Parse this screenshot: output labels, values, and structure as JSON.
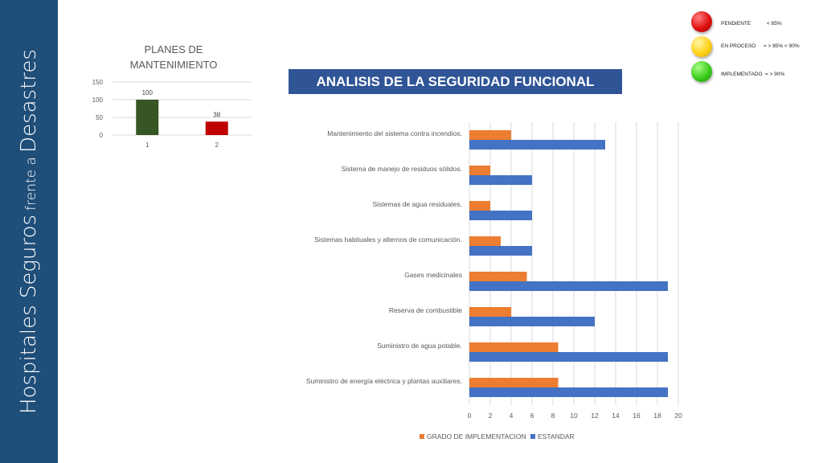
{
  "sidebar": {
    "title_part1": "Hospitales Seguros",
    "title_part2": "frente a",
    "title_part3": "Desastres",
    "color": "#1f4e79"
  },
  "banner": {
    "title": "ANALISIS DE LA SEGURIDAD FUNCIONAL",
    "color": "#2f5597"
  },
  "status_legend": {
    "items": [
      {
        "label": "PENDIENTE",
        "threshold": "< 85%",
        "light": "red-light-icon"
      },
      {
        "label": "EN PROCESO",
        "threshold": "= > 85%  < 90%",
        "light": "yellow-light-icon"
      },
      {
        "label": "IMPLEMENTADO",
        "threshold": "= > 90%",
        "light": "green-light-icon"
      }
    ]
  },
  "chart_data": [
    {
      "type": "bar",
      "title": "PLANES DE MANTENIMIENTO",
      "categories": [
        "1",
        "2"
      ],
      "values": [
        100,
        38
      ],
      "bar_colors": [
        "#375623",
        "#c00000"
      ],
      "data_labels": [
        "100",
        "38"
      ],
      "yticks": [
        "0",
        "50",
        "100",
        "150"
      ],
      "ylim": [
        0,
        150
      ],
      "grid": true
    },
    {
      "type": "bar",
      "orientation": "horizontal",
      "categories": [
        "Mantenimiento del sistema contra incendios.",
        "Sistema de manejo de residuos sólidos.",
        "Sistemas de agua residuales.",
        "Sistemas habituales y alternos de comunicación.",
        "Gases medicinales",
        "Reserva de combustible",
        "Suministro de agua potable.",
        "Suministro de energía eléctrica y plantas auxiliares."
      ],
      "series": [
        {
          "name": "GRADO DE IMPLEMENTACION",
          "color": "#ed7d31",
          "values": [
            4,
            2,
            2,
            3,
            5.5,
            4,
            8.5,
            8.5
          ]
        },
        {
          "name": "ESTANDAR",
          "color": "#4472c4",
          "values": [
            13,
            6,
            6,
            6,
            19,
            12,
            19,
            19
          ]
        }
      ],
      "xticks": [
        "0",
        "2",
        "4",
        "6",
        "8",
        "10",
        "12",
        "14",
        "16",
        "18",
        "20"
      ],
      "xlim": [
        0,
        20
      ],
      "grid": true,
      "legend_position": "bottom"
    }
  ]
}
